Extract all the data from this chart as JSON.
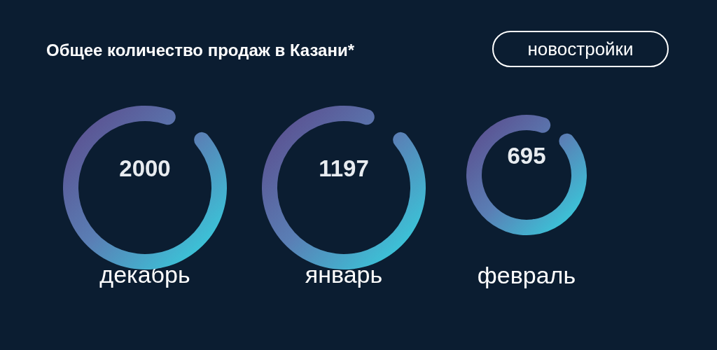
{
  "chart_data": {
    "type": "other",
    "title": "Общее количество продаж в Казани*",
    "subtitle": "новостройки",
    "categories": [
      "декабрь",
      "январь",
      "февраль"
    ],
    "values": [
      2000,
      1197,
      695
    ],
    "data_labels": true
  }
}
